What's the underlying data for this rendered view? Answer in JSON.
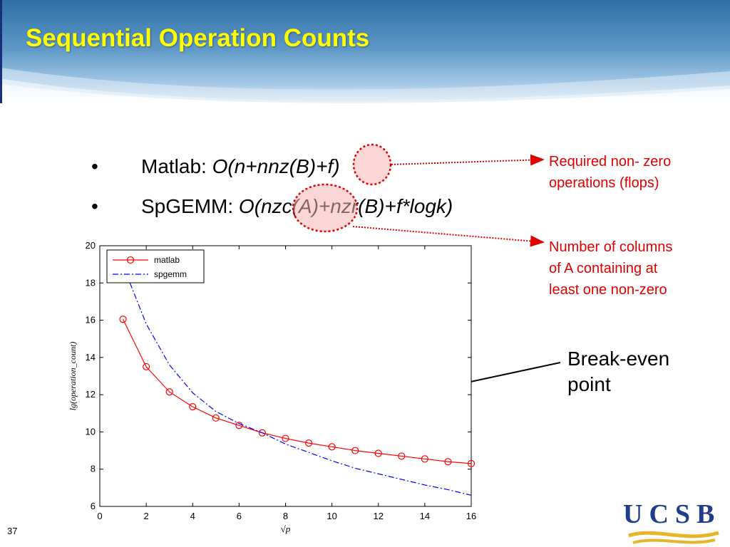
{
  "slide": {
    "title": "Sequential Operation Counts",
    "number": "37"
  },
  "bullets": [
    {
      "bullet": "•",
      "label": "Matlab: ",
      "formula": "O(n+nnz(B)+f)"
    },
    {
      "bullet": "•",
      "label": "SpGEMM: ",
      "formula": "O(nzc(A)+nzr(B)+f*logk)"
    }
  ],
  "annotations": {
    "flops": [
      "Required non- zero",
      "operations (flops)"
    ],
    "columns": [
      "Number of columns",
      "of A containing at",
      "least one non-zero"
    ],
    "break_even": [
      "Break-even",
      "point"
    ]
  },
  "logo": {
    "text": "UCSB"
  },
  "colors": {
    "title": "#ffff00",
    "annotation": "#e00000",
    "matlab_series": "#ff0000",
    "spgemm_series": "#0000ff",
    "logo_blue": "#1f3d8c",
    "logo_gold": "#e8b52a"
  },
  "chart_data": {
    "type": "line",
    "xlabel": "√p",
    "ylabel": "lg(operation_count)",
    "xlim": [
      0,
      16
    ],
    "ylim": [
      6,
      20
    ],
    "xticks": [
      0,
      2,
      4,
      6,
      8,
      10,
      12,
      14,
      16
    ],
    "yticks": [
      6,
      8,
      10,
      12,
      14,
      16,
      18,
      20
    ],
    "grid": false,
    "legend": "top-left",
    "series": [
      {
        "name": "matlab",
        "style": "solid-circle-markers",
        "x": [
          1,
          2,
          3,
          4,
          5,
          6,
          7,
          8,
          9,
          10,
          11,
          12,
          13,
          14,
          15,
          16
        ],
        "y": [
          16.05,
          13.5,
          12.15,
          11.35,
          10.75,
          10.35,
          9.95,
          9.65,
          9.4,
          9.2,
          9.0,
          8.85,
          8.7,
          8.55,
          8.4,
          8.3
        ]
      },
      {
        "name": "spgemm",
        "style": "dash-dot",
        "x": [
          1.3,
          2,
          3,
          4,
          5,
          6,
          7,
          8,
          9,
          10,
          11,
          12,
          13,
          14,
          15,
          16
        ],
        "y": [
          18.0,
          15.8,
          13.6,
          12.1,
          11.1,
          10.45,
          9.95,
          9.35,
          8.9,
          8.45,
          8.05,
          7.75,
          7.45,
          7.15,
          6.9,
          6.6
        ]
      }
    ]
  }
}
